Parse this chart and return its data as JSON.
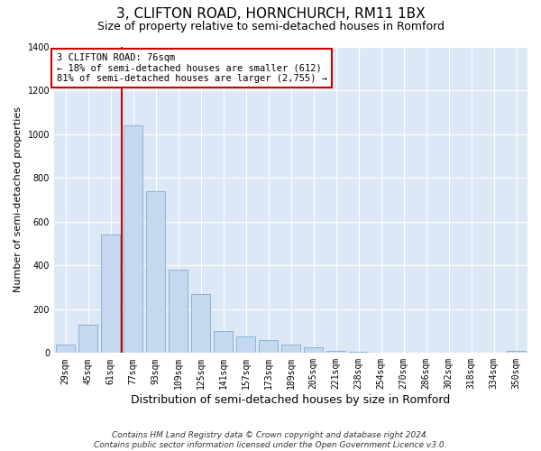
{
  "title1": "3, CLIFTON ROAD, HORNCHURCH, RM11 1BX",
  "title2": "Size of property relative to semi-detached houses in Romford",
  "xlabel": "Distribution of semi-detached houses by size in Romford",
  "ylabel": "Number of semi-detached properties",
  "categories": [
    "29sqm",
    "45sqm",
    "61sqm",
    "77sqm",
    "93sqm",
    "109sqm",
    "125sqm",
    "141sqm",
    "157sqm",
    "173sqm",
    "189sqm",
    "205sqm",
    "221sqm",
    "238sqm",
    "254sqm",
    "270sqm",
    "286sqm",
    "302sqm",
    "318sqm",
    "334sqm",
    "350sqm"
  ],
  "values": [
    40,
    130,
    540,
    1040,
    740,
    380,
    270,
    100,
    75,
    60,
    40,
    25,
    10,
    5,
    3,
    2,
    1,
    1,
    1,
    1,
    8
  ],
  "bar_color": "#c5d8f0",
  "bar_edge_color": "#7bafd4",
  "vline_color": "#cc0000",
  "annotation_text": "3 CLIFTON ROAD: 76sqm\n← 18% of semi-detached houses are smaller (612)\n81% of semi-detached houses are larger (2,755) →",
  "annotation_box_color": "#ffffff",
  "annotation_box_edge": "#cc0000",
  "ylim": [
    0,
    1400
  ],
  "yticks": [
    0,
    200,
    400,
    600,
    800,
    1000,
    1200,
    1400
  ],
  "footer": "Contains HM Land Registry data © Crown copyright and database right 2024.\nContains public sector information licensed under the Open Government Licence v3.0.",
  "title1_fontsize": 11,
  "title2_fontsize": 9,
  "xlabel_fontsize": 9,
  "ylabel_fontsize": 8,
  "tick_fontsize": 7,
  "footer_fontsize": 6.5,
  "annotation_fontsize": 7.5,
  "bg_color": "#dce8f5",
  "plot_bg_color": "#dce8f5"
}
